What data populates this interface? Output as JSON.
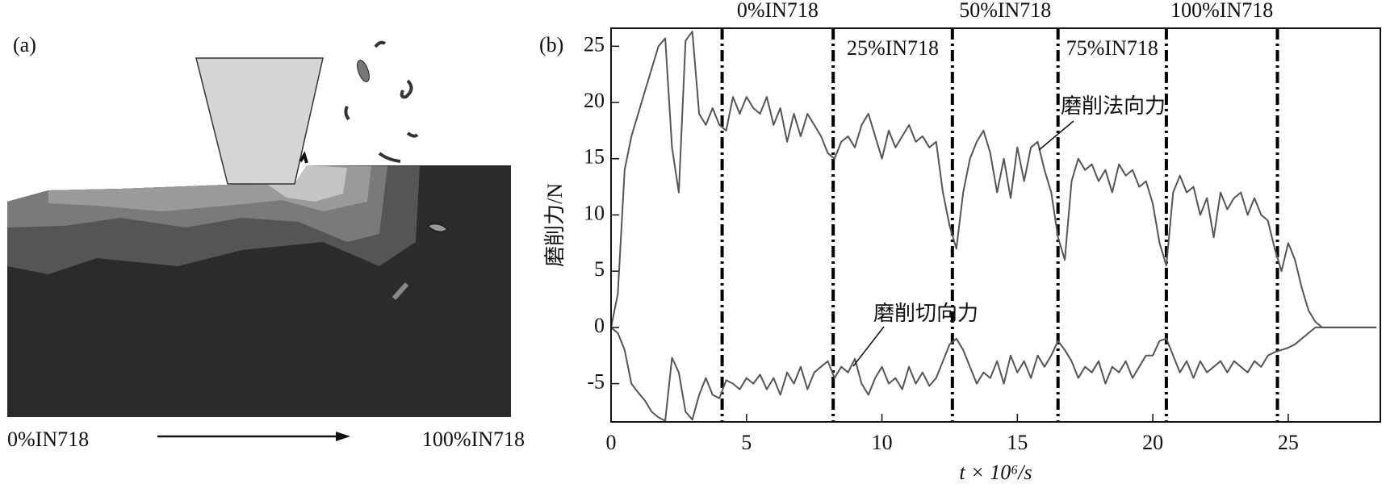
{
  "panel_a": {
    "label": "(a)",
    "left_label": "0%IN718",
    "right_label": "100%IN718"
  },
  "chart_data": {
    "type": "line",
    "panel_label": "(b)",
    "xlabel": "t × 10⁶/s",
    "ylabel": "磨削力/N",
    "xlim": [
      0,
      28.4
    ],
    "ylim": [
      -8.4,
      26.6
    ],
    "xticks": [
      0,
      5,
      10,
      15,
      20,
      25
    ],
    "yticks": [
      -5,
      0,
      5,
      10,
      15,
      20,
      25
    ],
    "vlines": [
      4.1,
      8.2,
      12.6,
      16.5,
      20.5,
      24.6
    ],
    "region_labels": [
      "0%IN718",
      "25%IN718",
      "50%IN718",
      "75%IN718",
      "100%IN718"
    ],
    "x": [
      0,
      0.25,
      0.5,
      0.75,
      1,
      1.25,
      1.5,
      1.75,
      2,
      2.25,
      2.5,
      2.75,
      3,
      3.25,
      3.5,
      3.75,
      4,
      4.25,
      4.5,
      4.75,
      5,
      5.25,
      5.5,
      5.75,
      6,
      6.25,
      6.5,
      6.75,
      7,
      7.25,
      7.5,
      7.75,
      8,
      8.25,
      8.5,
      8.75,
      9,
      9.25,
      9.5,
      9.75,
      10,
      10.25,
      10.5,
      10.75,
      11,
      11.25,
      11.5,
      11.75,
      12,
      12.25,
      12.5,
      12.75,
      13,
      13.25,
      13.5,
      13.75,
      14,
      14.25,
      14.5,
      14.75,
      15,
      15.25,
      15.5,
      15.75,
      16,
      16.25,
      16.5,
      16.75,
      17,
      17.25,
      17.5,
      17.75,
      18,
      18.25,
      18.5,
      18.75,
      19,
      19.25,
      19.5,
      19.75,
      20,
      20.25,
      20.5,
      20.75,
      21,
      21.25,
      21.5,
      21.75,
      22,
      22.25,
      22.5,
      22.75,
      23,
      23.25,
      23.5,
      23.75,
      24,
      24.25,
      24.5,
      24.75,
      25,
      25.25,
      25.5,
      25.75,
      26,
      26.25,
      26.5,
      26.75,
      27,
      27.25,
      27.5,
      27.75,
      28,
      28.25
    ],
    "series": [
      {
        "name": "磨削法向力",
        "color": "#555555",
        "values": [
          0,
          3,
          14,
          17,
          19,
          21,
          23,
          25,
          25.7,
          16,
          12,
          25.5,
          26.3,
          19,
          18,
          19.5,
          18,
          17.5,
          20.5,
          19,
          20.5,
          19.5,
          19,
          20.5,
          18,
          19.5,
          16.5,
          19,
          17,
          19,
          18,
          17,
          15.5,
          15,
          16.5,
          17,
          16,
          18,
          19,
          17,
          15,
          17.5,
          16,
          17,
          18,
          16.5,
          17,
          16,
          16.5,
          12,
          9,
          7,
          12,
          15,
          16.5,
          17.5,
          15.5,
          12,
          15,
          11.5,
          16,
          13,
          16,
          16.5,
          14,
          12,
          8,
          6,
          13,
          15,
          14,
          14.5,
          13,
          14,
          12,
          14.5,
          13.5,
          14,
          12.5,
          13,
          11,
          7.5,
          5.5,
          12,
          13.5,
          12,
          12.5,
          10,
          11.5,
          8,
          12,
          10.5,
          11.5,
          12,
          10,
          11.5,
          10,
          9.5,
          7,
          5,
          7.5,
          6,
          3.5,
          1.5,
          0.5,
          0,
          0,
          0,
          0,
          0,
          0,
          0,
          0,
          0
        ]
      },
      {
        "name": "磨削切向力",
        "color": "#555555",
        "values": [
          0,
          -0.5,
          -2,
          -5,
          -5.8,
          -6.5,
          -7.5,
          -8,
          -8.3,
          -2.7,
          -4,
          -7.5,
          -8.2,
          -6,
          -4.5,
          -6,
          -6.3,
          -4.7,
          -5,
          -5.5,
          -4.5,
          -5,
          -4.2,
          -5.5,
          -4.5,
          -6,
          -4,
          -5,
          -3.5,
          -5.5,
          -4,
          -3.5,
          -3,
          -4.5,
          -3.5,
          -4,
          -2.8,
          -5,
          -6,
          -4.5,
          -3.5,
          -5,
          -4.5,
          -5.5,
          -3.5,
          -5,
          -4,
          -5.2,
          -4.5,
          -3,
          -1.5,
          -1,
          -2,
          -3.5,
          -5,
          -4,
          -4.5,
          -3,
          -5,
          -2.5,
          -4,
          -3,
          -4.5,
          -2.5,
          -3.5,
          -2.5,
          -1.2,
          -2,
          -3,
          -4.5,
          -3.5,
          -4,
          -3,
          -5,
          -3.5,
          -4,
          -3,
          -4.5,
          -3.5,
          -2.5,
          -2.5,
          -1.2,
          -1,
          -2.5,
          -4,
          -3,
          -4.5,
          -3,
          -4,
          -3.5,
          -3,
          -4,
          -3,
          -3.5,
          -4,
          -3,
          -3.5,
          -2.5,
          -2.2,
          -2,
          -1.8,
          -1.5,
          -1,
          -0.5,
          0,
          0,
          0,
          0,
          0,
          0,
          0,
          0,
          0,
          0
        ]
      }
    ]
  }
}
